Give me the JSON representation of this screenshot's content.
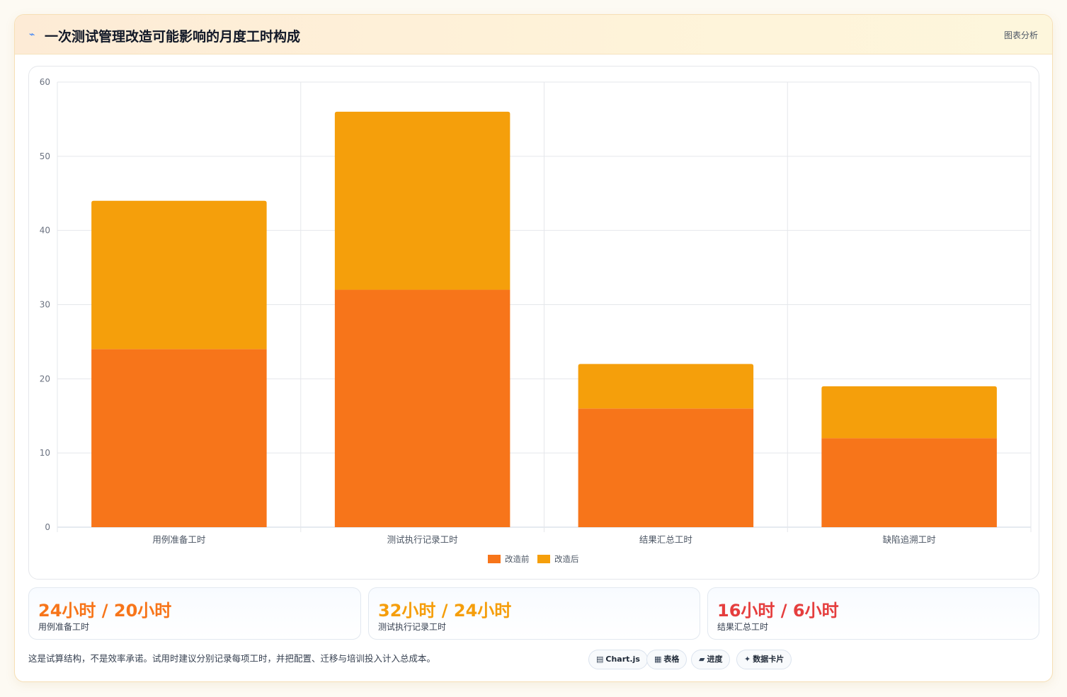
{
  "header": {
    "title": "一次测试管理改造可能影响的月度工时构成",
    "title_icon": "⌁",
    "tag": "图表分析"
  },
  "chart_data": {
    "type": "bar",
    "stacked": true,
    "categories": [
      "用例准备工时",
      "测试执行记录工时",
      "结果汇总工时",
      "缺陷追溯工时"
    ],
    "series": [
      {
        "name": "改造前",
        "values": [
          24,
          32,
          16,
          12
        ],
        "color": "#f7751a"
      },
      {
        "name": "改造后",
        "values": [
          20,
          24,
          6,
          7
        ],
        "color": "#f59f0b"
      }
    ],
    "ylim": [
      0,
      60
    ],
    "yticks": [
      0,
      10,
      20,
      30,
      40,
      50,
      60
    ],
    "grid": true,
    "legend": "bottom"
  },
  "stats": [
    {
      "value": "24小时 / 20小时",
      "label": "用例准备工时",
      "color": "#f7751a"
    },
    {
      "value": "32小时 / 24小时",
      "label": "测试执行记录工时",
      "color": "#f59e0b"
    },
    {
      "value": "16小时 / 6小时",
      "label": "结果汇总工时",
      "color": "#e53e3e"
    }
  ],
  "note": "这是试算结构，不是效率承诺。试用时建议分别记录每项工时，并把配置、迁移与培训投入计入总成本。",
  "chips": [
    {
      "icon": "▤",
      "label": "Chart.js"
    },
    {
      "icon": "▦",
      "label": "表格"
    },
    {
      "icon": "▰",
      "label": "进度"
    },
    {
      "icon": "✦",
      "label": "数据卡片"
    }
  ]
}
